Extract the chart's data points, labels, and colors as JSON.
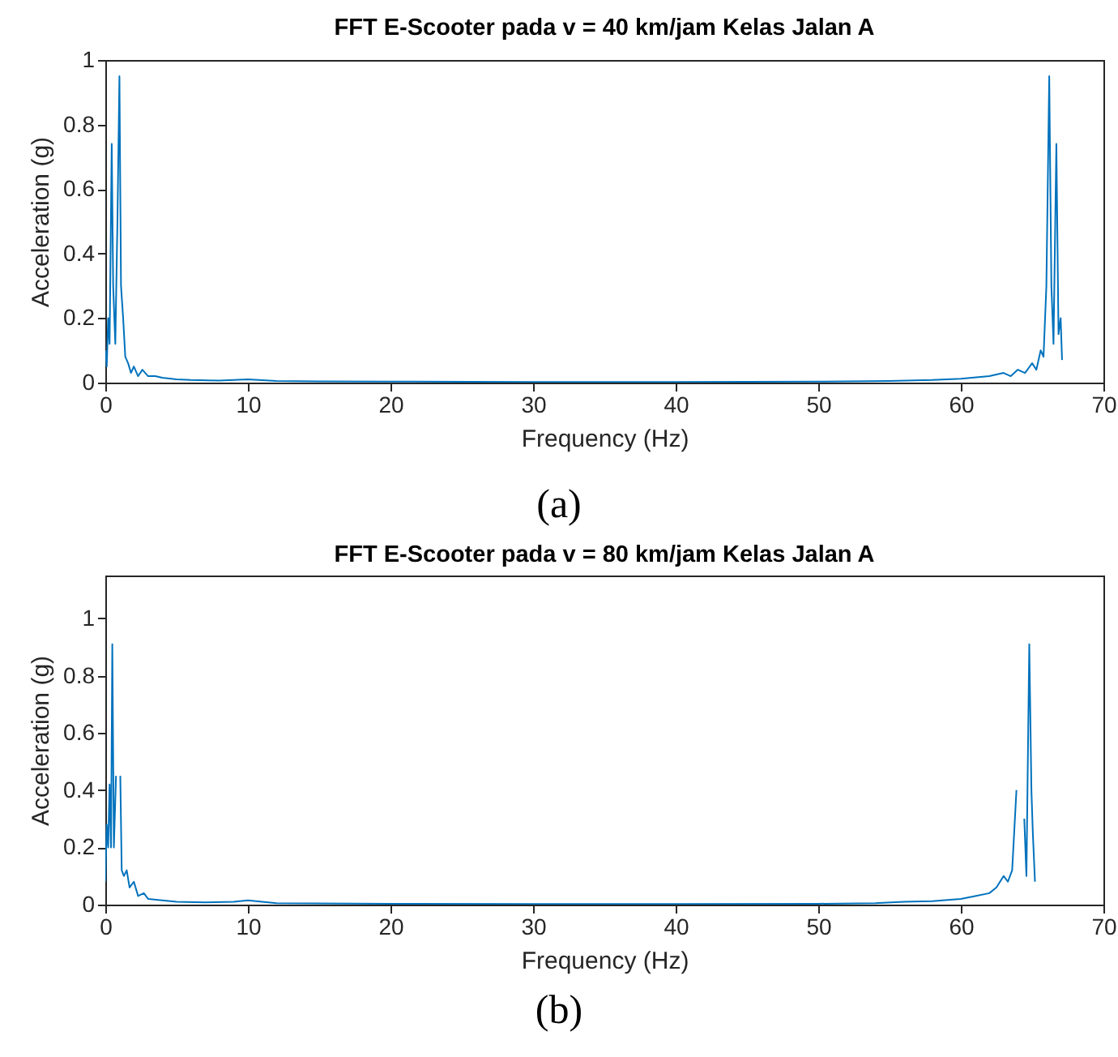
{
  "chart_data": [
    {
      "type": "line",
      "title": "FFT E-Scooter pada v = 40 km/jam Kelas Jalan A",
      "xlabel": "Frequency (Hz)",
      "ylabel": "Acceleration (g)",
      "annotations": [
        "(a)"
      ],
      "xlim": [
        0,
        70
      ],
      "xticks": [
        0,
        10,
        20,
        30,
        40,
        50,
        60,
        70
      ],
      "ylim": [
        0,
        1
      ],
      "yticks": [
        0,
        0.2,
        0.4,
        0.6,
        0.8,
        1
      ],
      "grid": false,
      "series": [
        {
          "color": "#0072bd",
          "x": [
            0,
            0.1,
            0.2,
            0.3,
            0.45,
            0.55,
            0.7,
            0.85,
            0.99,
            1.1,
            1.25,
            1.4,
            1.6,
            1.8,
            2,
            2.3,
            2.6,
            3,
            3.5,
            4,
            5,
            6,
            8,
            10,
            12,
            15,
            20,
            30,
            40,
            50,
            55,
            58,
            60,
            62,
            63,
            63.5,
            64,
            64.5,
            65,
            65.3,
            65.6,
            65.8,
            66,
            66.2,
            66.35,
            66.5,
            66.7,
            66.85,
            67,
            67.1
          ],
          "values": [
            0.1,
            0.05,
            0.2,
            0.12,
            0.74,
            0.3,
            0.12,
            0.5,
            0.95,
            0.3,
            0.2,
            0.08,
            0.06,
            0.03,
            0.05,
            0.02,
            0.04,
            0.02,
            0.02,
            0.015,
            0.01,
            0.008,
            0.006,
            0.01,
            0.005,
            0.004,
            0.003,
            0.002,
            0.002,
            0.003,
            0.005,
            0.008,
            0.012,
            0.02,
            0.03,
            0.02,
            0.04,
            0.03,
            0.06,
            0.04,
            0.1,
            0.08,
            0.3,
            0.95,
            0.3,
            0.12,
            0.74,
            0.15,
            0.2,
            0.07
          ]
        }
      ]
    },
    {
      "type": "line",
      "title": "FFT E-Scooter pada v = 80 km/jam Kelas Jalan A",
      "xlabel": "Frequency (Hz)",
      "ylabel": "Acceleration (g)",
      "annotations": [
        "(b)"
      ],
      "xlim": [
        0,
        70
      ],
      "xticks": [
        0,
        10,
        20,
        30,
        40,
        50,
        60,
        70
      ],
      "ylim": [
        0,
        1.15
      ],
      "yticks": [
        0,
        0.2,
        0.4,
        0.6,
        0.8,
        1
      ],
      "grid": false,
      "series": [
        {
          "color": "#0072bd",
          "x": [
            0,
            0.1,
            0.2,
            0.3,
            0.4,
            0.49,
            0.6,
            0.75,
            0.9,
            1.05,
            1.15,
            1.3,
            1.5,
            1.7,
            2,
            2.3,
            2.7,
            3,
            4,
            5,
            7,
            9,
            10,
            12,
            20,
            30,
            40,
            50,
            54,
            56,
            58,
            60,
            61,
            62,
            62.5,
            63,
            63.3,
            63.6,
            63.9,
            64.3,
            64.45,
            64.6,
            64.8,
            64.95,
            65.05,
            65.2
          ],
          "values": [
            0.08,
            0.28,
            0.2,
            0.42,
            0.2,
            0.91,
            0.2,
            0.45,
            null,
            0.45,
            0.12,
            0.1,
            0.12,
            0.06,
            0.08,
            0.03,
            0.04,
            0.02,
            0.015,
            0.01,
            0.008,
            0.01,
            0.015,
            0.005,
            0.003,
            0.002,
            0.002,
            0.003,
            0.005,
            0.01,
            0.012,
            0.02,
            0.03,
            0.04,
            0.06,
            0.1,
            0.08,
            0.12,
            0.4,
            null,
            0.3,
            0.1,
            0.91,
            0.4,
            0.25,
            0.08
          ]
        }
      ]
    }
  ]
}
